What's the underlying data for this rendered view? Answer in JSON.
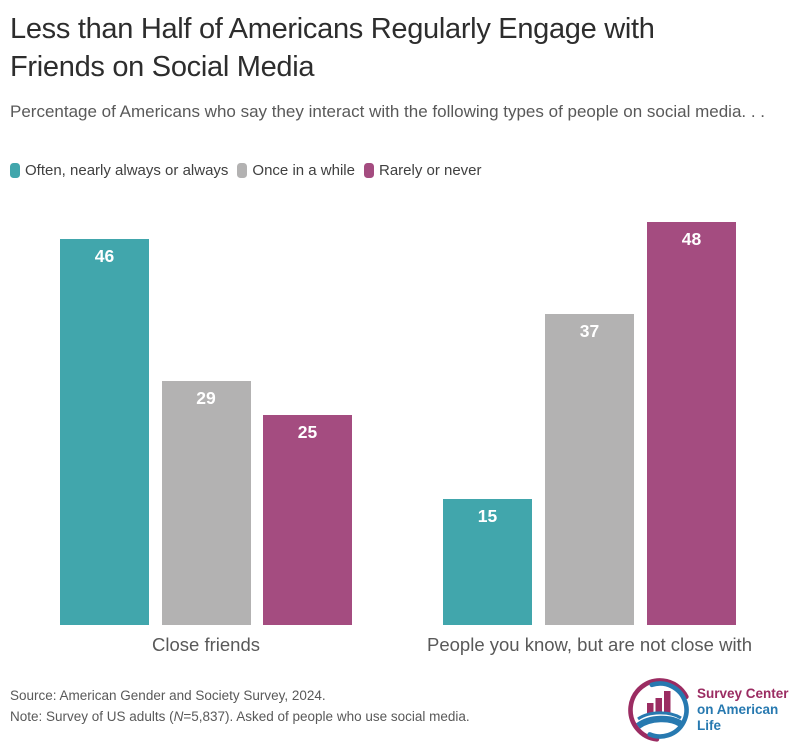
{
  "header": {
    "title": "Less than Half of Americans Regularly Engage with Friends on Social Media",
    "subtitle": "Percentage of Americans who say they interact with the following types of people on social media. . ."
  },
  "legend": {
    "items": [
      {
        "label": "Often, nearly always or always",
        "color": "#41A6AC"
      },
      {
        "label": "Once in a while",
        "color": "#B3B2B2"
      },
      {
        "label": "Rarely or never",
        "color": "#A44C80"
      }
    ]
  },
  "chart_data": {
    "type": "bar",
    "orientation": "vertical",
    "categories": [
      "Close friends",
      "People you know, but are not close with"
    ],
    "series": [
      {
        "name": "Often, nearly always or always",
        "color": "#41A6AC",
        "values": [
          46,
          15
        ]
      },
      {
        "name": "Once in a while",
        "color": "#B3B2B2",
        "values": [
          29,
          37
        ]
      },
      {
        "name": "Rarely or never",
        "color": "#A44C80",
        "values": [
          25,
          48
        ]
      }
    ],
    "value_labels": true,
    "value_label_color": "#FFFFFF",
    "ylim": [
      0,
      50
    ],
    "grid": false,
    "axes_shown": false,
    "legend_position": "top-left"
  },
  "footer": {
    "source": "Source: American Gender and Society Survey, 2024.",
    "note_prefix": "Note: Survey of US adults (",
    "note_n": "N",
    "note_suffix": "=5,837). Asked of people who use social media.",
    "logo": {
      "line1": "Survey Center",
      "line2": "on American Life",
      "magenta": "#9B2C62",
      "blue": "#2779B0"
    }
  }
}
